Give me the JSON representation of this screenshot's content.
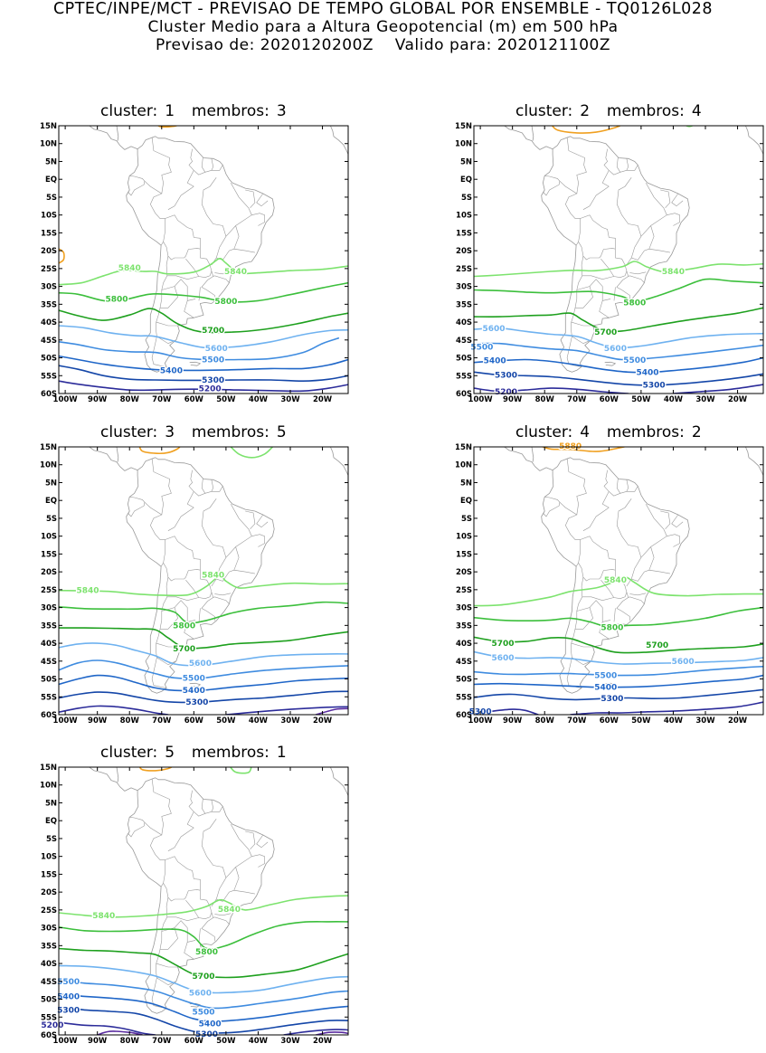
{
  "header": {
    "line1": "CPTEC/INPE/MCT - PREVISAO DE TEMPO GLOBAL POR ENSEMBLE - TQ0126L028",
    "line2": "Cluster Medio para a Altura Geopotencial (m) em 500 hPa",
    "line3_prefix": "Previsao de:",
    "line3_forecast": "2020120200Z",
    "line3_valid_prefix": "Valido para:",
    "line3_valid": "2020121100Z"
  },
  "axes": {
    "lat_labels": [
      "15N",
      "10N",
      "5N",
      "EQ",
      "5S",
      "10S",
      "15S",
      "20S",
      "25S",
      "30S",
      "35S",
      "40S",
      "45S",
      "50S",
      "55S",
      "60S"
    ],
    "lon_labels": [
      "100W",
      "90W",
      "80W",
      "70W",
      "60W",
      "50W",
      "40W",
      "30W",
      "20W"
    ]
  },
  "colors": {
    "5840": "#7de36e",
    "5800": "#3cbf3c",
    "5700": "#1ea01e",
    "5600": "#6fb2f0",
    "5500": "#3f8ce0",
    "5400": "#1f66c8",
    "5300": "#1446a8",
    "5200": "#2c2c9a",
    "5100": "#5a2ca0",
    "5880": "#f0a020",
    "coast": "#999999"
  },
  "panels": [
    {
      "cluster_label": "cluster:",
      "cluster": "1",
      "members_label": "membros:",
      "members": "3",
      "labels": [
        {
          "text": "5840",
          "lon": -80,
          "lat": -24.8,
          "level": "5840"
        },
        {
          "text": "5840",
          "lon": -47,
          "lat": -25.8,
          "level": "5840"
        },
        {
          "text": "5800",
          "lon": -84,
          "lat": -33.5,
          "level": "5800"
        },
        {
          "text": "5800",
          "lon": -50,
          "lat": -34.2,
          "level": "5800"
        },
        {
          "text": "5700",
          "lon": -54,
          "lat": -42.3,
          "level": "5700"
        },
        {
          "text": "5600",
          "lon": -53,
          "lat": -47.3,
          "level": "5600"
        },
        {
          "text": "5500",
          "lon": -54,
          "lat": -50.5,
          "level": "5500"
        },
        {
          "text": "5400",
          "lon": -67,
          "lat": -53.5,
          "level": "5400"
        },
        {
          "text": "5300",
          "lon": -54,
          "lat": -56.2,
          "level": "5300"
        },
        {
          "text": "5200",
          "lon": -55,
          "lat": -58.6,
          "level": "5200"
        }
      ]
    },
    {
      "cluster_label": "cluster:",
      "cluster": "2",
      "members_label": "membros:",
      "members": "4",
      "labels": [
        {
          "text": "5840",
          "lon": -40,
          "lat": -25.8,
          "level": "5840"
        },
        {
          "text": "5800",
          "lon": -52,
          "lat": -34.5,
          "level": "5800"
        },
        {
          "text": "5700",
          "lon": -61,
          "lat": -42.8,
          "level": "5700"
        },
        {
          "text": "5600",
          "lon": -95.8,
          "lat": -41.8,
          "level": "5600"
        },
        {
          "text": "5600",
          "lon": -58,
          "lat": -47.3,
          "level": "5600"
        },
        {
          "text": "5500",
          "lon": -99.5,
          "lat": -46.9,
          "level": "5500"
        },
        {
          "text": "5500",
          "lon": -52,
          "lat": -50.6,
          "level": "5500"
        },
        {
          "text": "5400",
          "lon": -95.5,
          "lat": -50.8,
          "level": "5400"
        },
        {
          "text": "5400",
          "lon": -48,
          "lat": -54,
          "level": "5400"
        },
        {
          "text": "5300",
          "lon": -92,
          "lat": -54.8,
          "level": "5300"
        },
        {
          "text": "5300",
          "lon": -46,
          "lat": -57.6,
          "level": "5300"
        },
        {
          "text": "5200",
          "lon": -92,
          "lat": -59.5,
          "level": "5200"
        }
      ]
    },
    {
      "cluster_label": "cluster:",
      "cluster": "3",
      "members_label": "membros:",
      "members": "5",
      "labels": [
        {
          "text": "5840",
          "lon": -93,
          "lat": -25.2,
          "level": "5840"
        },
        {
          "text": "5840",
          "lon": -54,
          "lat": -20.8,
          "level": "5840"
        },
        {
          "text": "5800",
          "lon": -63,
          "lat": -35,
          "level": "5800"
        },
        {
          "text": "5700",
          "lon": -63,
          "lat": -41.5,
          "level": "5700"
        },
        {
          "text": "5600",
          "lon": -58,
          "lat": -45.5,
          "level": "5600"
        },
        {
          "text": "5500",
          "lon": -60,
          "lat": -49.8,
          "level": "5500"
        },
        {
          "text": "5400",
          "lon": -60,
          "lat": -53.2,
          "level": "5400"
        },
        {
          "text": "5300",
          "lon": -59,
          "lat": -56.4,
          "level": "5300"
        }
      ]
    },
    {
      "cluster_label": "cluster:",
      "cluster": "4",
      "members_label": "membros:",
      "members": "2",
      "labels": [
        {
          "text": "5880",
          "lon": -72,
          "lat": 15.3,
          "level": "5880"
        },
        {
          "text": "5840",
          "lon": -58,
          "lat": -22.2,
          "level": "5840"
        },
        {
          "text": "5800",
          "lon": -59,
          "lat": -35.5,
          "level": "5800"
        },
        {
          "text": "5700",
          "lon": -93,
          "lat": -40,
          "level": "5700"
        },
        {
          "text": "5700",
          "lon": -45,
          "lat": -40.5,
          "level": "5700"
        },
        {
          "text": "5600",
          "lon": -93,
          "lat": -44,
          "level": "5600"
        },
        {
          "text": "5600",
          "lon": -37,
          "lat": -45,
          "level": "5600"
        },
        {
          "text": "5500",
          "lon": -61,
          "lat": -49,
          "level": "5500"
        },
        {
          "text": "5400",
          "lon": -61,
          "lat": -52.3,
          "level": "5400"
        },
        {
          "text": "5300",
          "lon": -59,
          "lat": -55.5,
          "level": "5300"
        },
        {
          "text": "5300",
          "lon": -100,
          "lat": -59.1,
          "level": "5300"
        }
      ]
    },
    {
      "cluster_label": "cluster:",
      "cluster": "5",
      "members_label": "membros:",
      "members": "1",
      "labels": [
        {
          "text": "5840",
          "lon": -88,
          "lat": -26.6,
          "level": "5840"
        },
        {
          "text": "5840",
          "lon": -49,
          "lat": -24.8,
          "level": "5840"
        },
        {
          "text": "5800",
          "lon": -56,
          "lat": -36.7,
          "level": "5800"
        },
        {
          "text": "5700",
          "lon": -57,
          "lat": -43.5,
          "level": "5700"
        },
        {
          "text": "5600",
          "lon": -58,
          "lat": -48.2,
          "level": "5600"
        },
        {
          "text": "5500",
          "lon": -99,
          "lat": -45,
          "level": "5500"
        },
        {
          "text": "5500",
          "lon": -57,
          "lat": -53.5,
          "level": "5500"
        },
        {
          "text": "5400",
          "lon": -99,
          "lat": -49.2,
          "level": "5400"
        },
        {
          "text": "5400",
          "lon": -55,
          "lat": -56.8,
          "level": "5400"
        },
        {
          "text": "5300",
          "lon": -99,
          "lat": -53,
          "level": "5300"
        },
        {
          "text": "5300",
          "lon": -56,
          "lat": -59.8,
          "level": "5300"
        },
        {
          "text": "5200",
          "lon": -104,
          "lat": -57.2,
          "level": "5200"
        }
      ]
    }
  ]
}
